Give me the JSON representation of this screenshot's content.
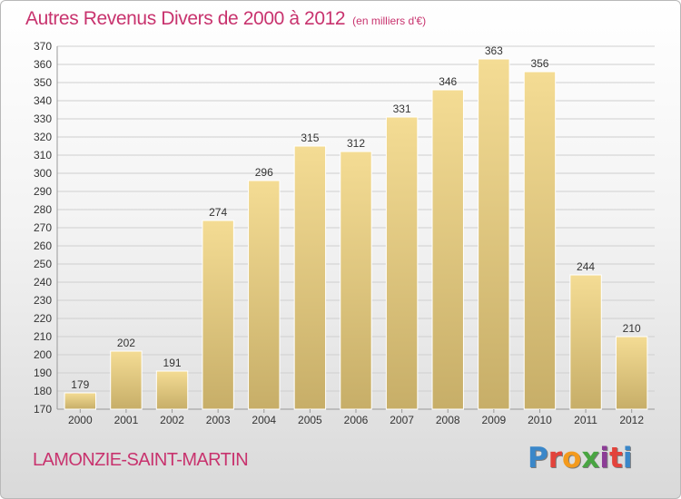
{
  "header": {
    "title": "Autres Revenus Divers de 2000 à 2012",
    "unit": "(en milliers d'€)"
  },
  "footer": {
    "commune": "LAMONZIE-SAINT-MARTIN",
    "brand": "Proxiti"
  },
  "colors": {
    "title": "#c8336e",
    "bar_light": "#f4dc94",
    "bar_dark": "#c7ae68",
    "grid": "#cfcfcf"
  },
  "chart_data": {
    "type": "bar",
    "title": "Autres Revenus Divers de 2000 à 2012",
    "subtitle": "(en milliers d'€)",
    "categories": [
      "2000",
      "2001",
      "2002",
      "2003",
      "2004",
      "2005",
      "2006",
      "2007",
      "2008",
      "2009",
      "2010",
      "2011",
      "2012"
    ],
    "values": [
      179,
      202,
      191,
      274,
      296,
      315,
      312,
      331,
      346,
      363,
      356,
      244,
      210
    ],
    "ylim": [
      170,
      370
    ],
    "ytick_step": 10,
    "grid": true,
    "data_labels": true
  }
}
